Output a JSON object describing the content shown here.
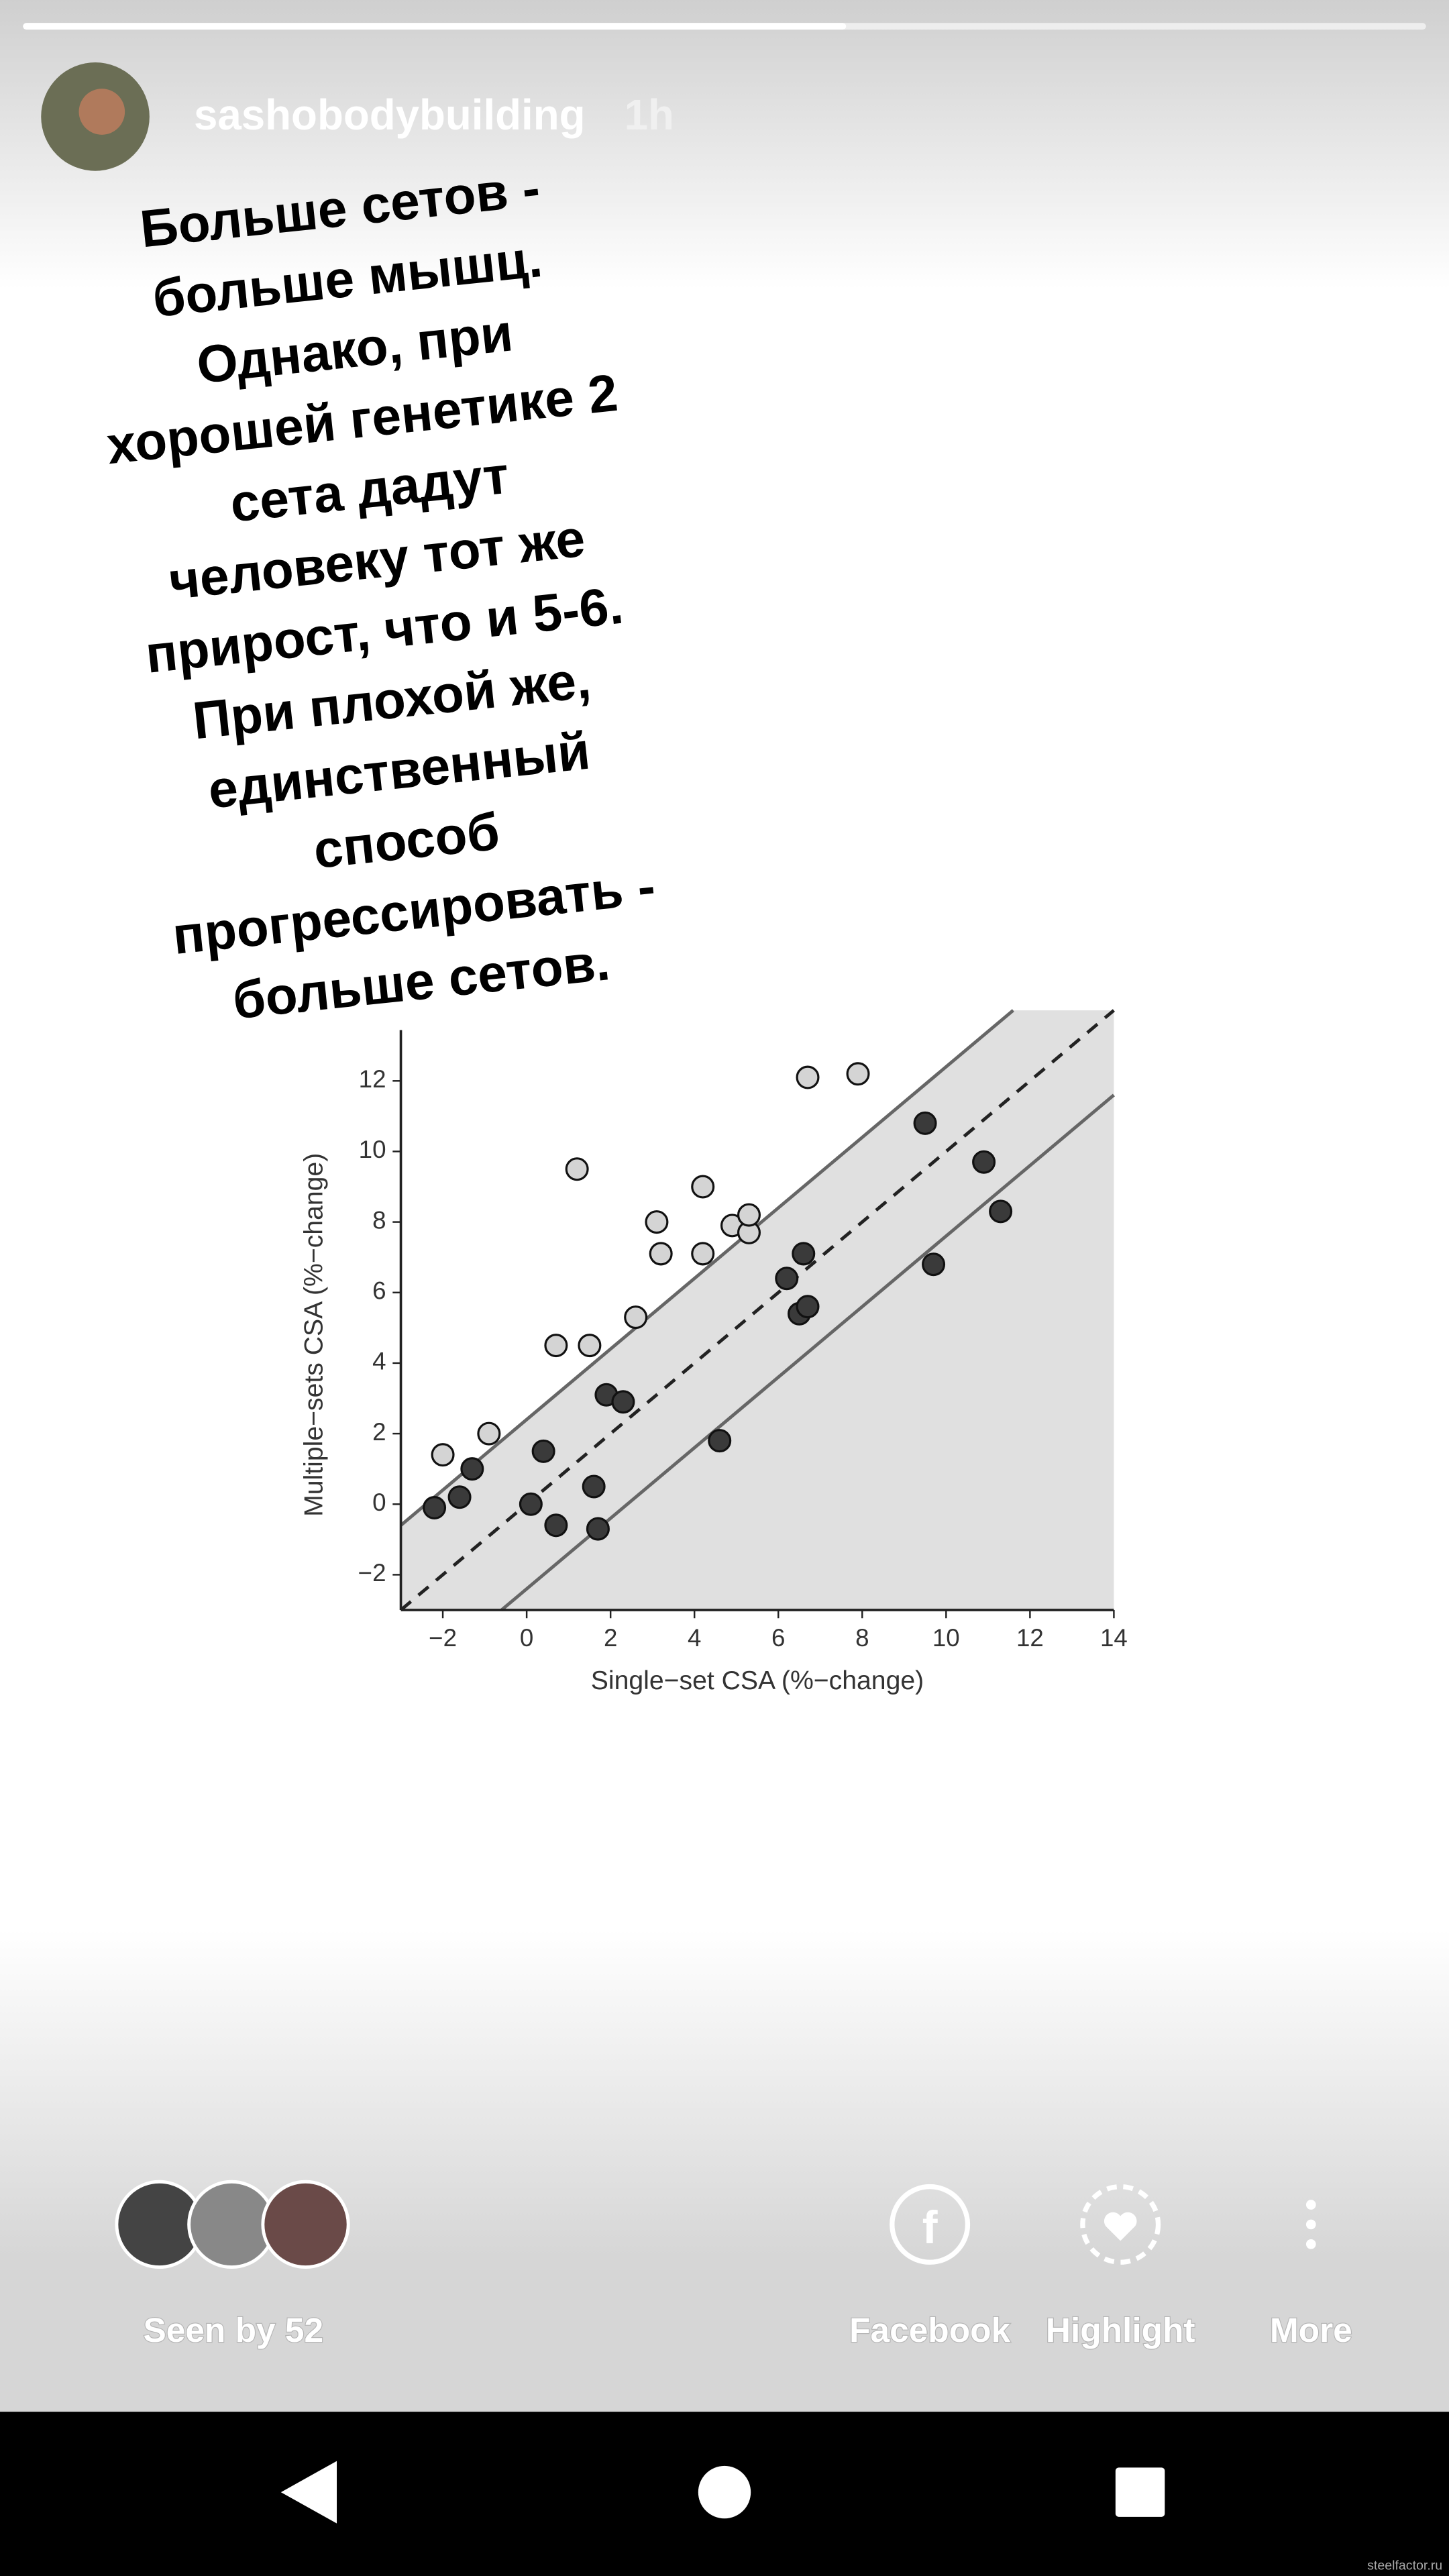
{
  "header": {
    "username": "sashobodybuilding",
    "time": "1h"
  },
  "caption": [
    "Больше сетов -",
    "больше мышц.",
    "Однако, при",
    "хорошей генетике 2",
    "сета дадут",
    "человеку тот же",
    "прирост, что и 5-6.",
    "При плохой же,",
    "единственный",
    "способ",
    "прогрессировать -",
    "больше сетов."
  ],
  "chart_data": {
    "type": "scatter",
    "xlabel": "Single−set CSA (%−change)",
    "ylabel": "Multiple−sets CSA (%−change)",
    "xlim": [
      -3,
      14
    ],
    "ylim": [
      -3,
      14
    ],
    "xticks": [
      {
        "value": -2,
        "label": "−2"
      },
      0,
      2,
      4,
      6,
      8,
      10,
      12,
      14
    ],
    "yticks": [
      {
        "value": -2,
        "label": "−2"
      },
      0,
      2,
      4,
      6,
      8,
      10,
      12
    ],
    "reference_lines": [
      {
        "offset": 2.4,
        "dashed": false
      },
      {
        "offset": 0,
        "dashed": true
      },
      {
        "offset": -2.4,
        "dashed": false
      }
    ],
    "shade_color": "#e0e0e0",
    "series": [
      {
        "color": "#d4d4d4",
        "x": [
          -2.0,
          -0.9,
          0.7,
          1.5,
          1.2,
          2.6,
          3.1,
          3.2,
          4.2,
          4.2,
          4.9,
          5.3,
          5.3,
          6.7,
          7.9
        ],
        "values": [
          1.4,
          2.0,
          4.5,
          4.5,
          9.5,
          5.3,
          8.0,
          7.1,
          9.0,
          7.1,
          7.9,
          7.7,
          8.2,
          12.1,
          12.2
        ]
      },
      {
        "color": "#3a3a3a",
        "x": [
          -2.2,
          -1.6,
          -1.3,
          0.4,
          0.1,
          0.7,
          1.6,
          1.7,
          1.9,
          2.3,
          4.6,
          6.2,
          6.5,
          6.6,
          6.7,
          9.5,
          9.7,
          10.9,
          11.3
        ],
        "values": [
          -0.1,
          0.2,
          1.0,
          1.5,
          0.0,
          -0.6,
          0.5,
          -0.7,
          3.1,
          2.9,
          1.8,
          6.4,
          5.4,
          7.1,
          5.6,
          10.8,
          6.8,
          9.7,
          8.3
        ]
      }
    ]
  },
  "footer": {
    "seen_by": "Seen by 52",
    "actions": [
      "Facebook",
      "Highlight",
      "More"
    ]
  },
  "watermark": "steelfactor.ru"
}
